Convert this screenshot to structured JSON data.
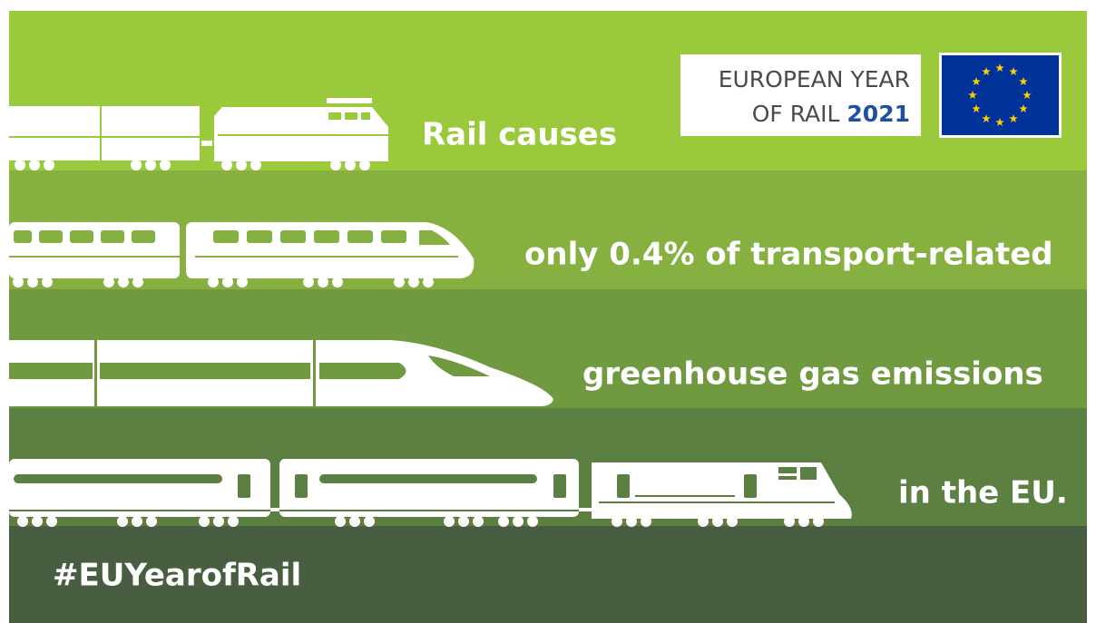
{
  "logo": {
    "line1": "EUROPEAN YEAR",
    "line2": "OF RAIL",
    "year": "2021"
  },
  "lines": [
    "Rail causes",
    "only 0.4% of transport-related",
    "greenhouse gas emissions",
    "in the EU."
  ],
  "hashtag": "#EUYearofRail"
}
